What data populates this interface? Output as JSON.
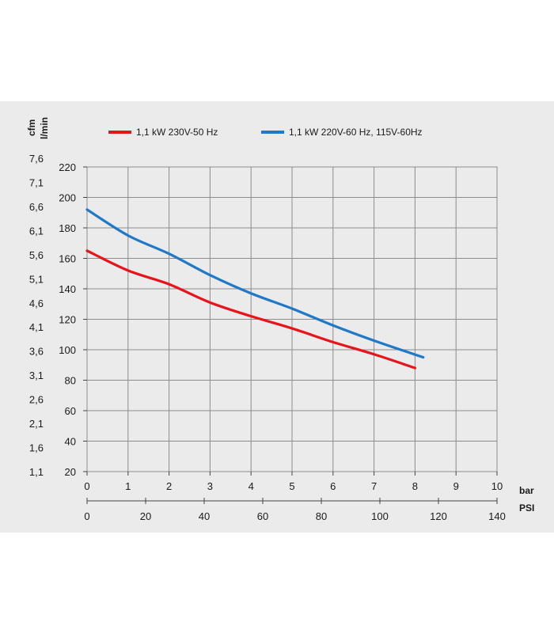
{
  "chart_data": {
    "type": "line",
    "ylabel_left": "cfm",
    "ylabel_right": "l/min",
    "xlabel_bar": "bar",
    "xlabel_psi": "PSI",
    "cfm_ticks": [
      "7,6",
      "7,1",
      "6,6",
      "6,1",
      "5,6",
      "5,1",
      "4,6",
      "4,1",
      "3,6",
      "3,1",
      "2,6",
      "2,1",
      "1,6",
      "1,1"
    ],
    "lmin_ticks": [
      220,
      200,
      180,
      160,
      140,
      120,
      100,
      80,
      60,
      40,
      20
    ],
    "bar_ticks": [
      0,
      1,
      2,
      3,
      4,
      5,
      6,
      7,
      8,
      9,
      10
    ],
    "psi_ticks": [
      0,
      20,
      40,
      60,
      80,
      100,
      120,
      140
    ],
    "xlim": [
      0,
      10
    ],
    "ylim": [
      20,
      220
    ],
    "grid": true,
    "legend_position": "top",
    "series": [
      {
        "name": "1,1 kW 230V-50 Hz",
        "color": "#e8141b",
        "points": [
          [
            0,
            165
          ],
          [
            1,
            152
          ],
          [
            2,
            143
          ],
          [
            3,
            131
          ],
          [
            4,
            122
          ],
          [
            5,
            114
          ],
          [
            6,
            105
          ],
          [
            7,
            97
          ],
          [
            8,
            88
          ]
        ]
      },
      {
        "name": "1,1 kW 220V-60 Hz, 115V-60Hz",
        "color": "#1f78c8",
        "points": [
          [
            0,
            192
          ],
          [
            1,
            175
          ],
          [
            2,
            163
          ],
          [
            3,
            149
          ],
          [
            4,
            137
          ],
          [
            5,
            127
          ],
          [
            6,
            116
          ],
          [
            7,
            106
          ],
          [
            8.2,
            95
          ]
        ]
      }
    ]
  }
}
